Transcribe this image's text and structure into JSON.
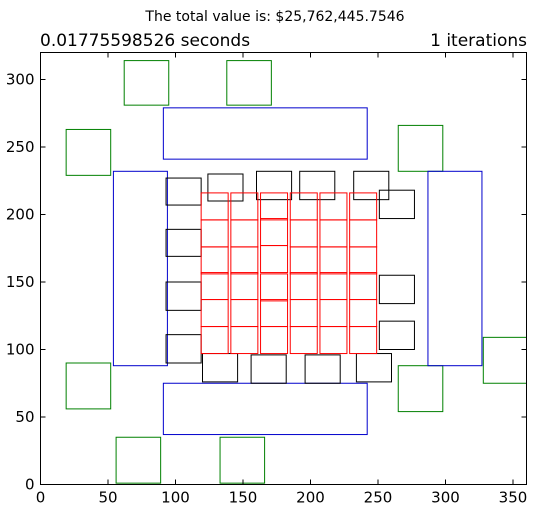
{
  "chart_data": {
    "type": "rectangle-layout",
    "suptitle": "The total value is: $25,762,445.7546",
    "left_title": "0.01775598526 seconds",
    "right_title": "1 iterations",
    "xlim": [
      0,
      360
    ],
    "ylim": [
      0,
      320
    ],
    "xticks": [
      0,
      50,
      100,
      150,
      200,
      250,
      300,
      350
    ],
    "yticks": [
      0,
      50,
      100,
      150,
      200,
      250,
      300
    ],
    "colors": {
      "green": "#008000",
      "blue": "#0000cc",
      "black": "#000000",
      "red": "#ff0000"
    },
    "rects": {
      "green": [
        [
          62,
          281,
          33,
          33
        ],
        [
          138,
          281,
          33,
          33
        ],
        [
          19,
          229,
          33,
          34
        ],
        [
          265,
          232,
          33,
          34
        ],
        [
          19,
          56,
          33,
          34
        ],
        [
          265,
          54,
          33,
          34
        ],
        [
          56,
          1,
          33,
          34
        ],
        [
          133,
          1,
          33,
          34
        ],
        [
          328,
          75,
          32,
          34
        ]
      ],
      "blue": [
        [
          91,
          241,
          151,
          38
        ],
        [
          91,
          37,
          151,
          38
        ],
        [
          54,
          88,
          40,
          144
        ],
        [
          287,
          88,
          40,
          144
        ]
      ],
      "black": [
        [
          124,
          210,
          26,
          20
        ],
        [
          160,
          211,
          26,
          21
        ],
        [
          192,
          211,
          26,
          21
        ],
        [
          232,
          211,
          26,
          21
        ],
        [
          93,
          207,
          26,
          20
        ],
        [
          251,
          197,
          26,
          21
        ],
        [
          93,
          169,
          26,
          20
        ],
        [
          93,
          129,
          26,
          21
        ],
        [
          93,
          90,
          26,
          21
        ],
        [
          251,
          134,
          26,
          21
        ],
        [
          251,
          100,
          26,
          21
        ],
        [
          120,
          76,
          26,
          21
        ],
        [
          156,
          75,
          26,
          21
        ],
        [
          196,
          75,
          26,
          21
        ],
        [
          234,
          76,
          26,
          21
        ]
      ],
      "red": [
        [
          119,
          196,
          20,
          20
        ],
        [
          141,
          196,
          20,
          20
        ],
        [
          163,
          196,
          20,
          20
        ],
        [
          185,
          196,
          20,
          20
        ],
        [
          207,
          196,
          20,
          20
        ],
        [
          229,
          196,
          20,
          20
        ],
        [
          119,
          176,
          20,
          20
        ],
        [
          141,
          176,
          20,
          20
        ],
        [
          163,
          177,
          20,
          20
        ],
        [
          185,
          176,
          20,
          20
        ],
        [
          207,
          176,
          20,
          20
        ],
        [
          229,
          176,
          20,
          20
        ],
        [
          119,
          156,
          20,
          20
        ],
        [
          141,
          156,
          20,
          20
        ],
        [
          163,
          157,
          20,
          20
        ],
        [
          185,
          156,
          20,
          20
        ],
        [
          207,
          156,
          20,
          20
        ],
        [
          229,
          156,
          20,
          20
        ],
        [
          119,
          137,
          20,
          20
        ],
        [
          141,
          137,
          20,
          20
        ],
        [
          163,
          136,
          20,
          20
        ],
        [
          185,
          137,
          20,
          20
        ],
        [
          207,
          137,
          20,
          20
        ],
        [
          229,
          137,
          20,
          20
        ],
        [
          119,
          117,
          20,
          20
        ],
        [
          141,
          117,
          20,
          20
        ],
        [
          163,
          117,
          20,
          20
        ],
        [
          185,
          117,
          20,
          20
        ],
        [
          207,
          117,
          20,
          20
        ],
        [
          229,
          117,
          20,
          20
        ],
        [
          119,
          97,
          20,
          20
        ],
        [
          141,
          97,
          20,
          20
        ],
        [
          163,
          97,
          20,
          20
        ],
        [
          185,
          97,
          20,
          20
        ],
        [
          207,
          97,
          20,
          20
        ],
        [
          229,
          97,
          20,
          20
        ]
      ]
    }
  }
}
